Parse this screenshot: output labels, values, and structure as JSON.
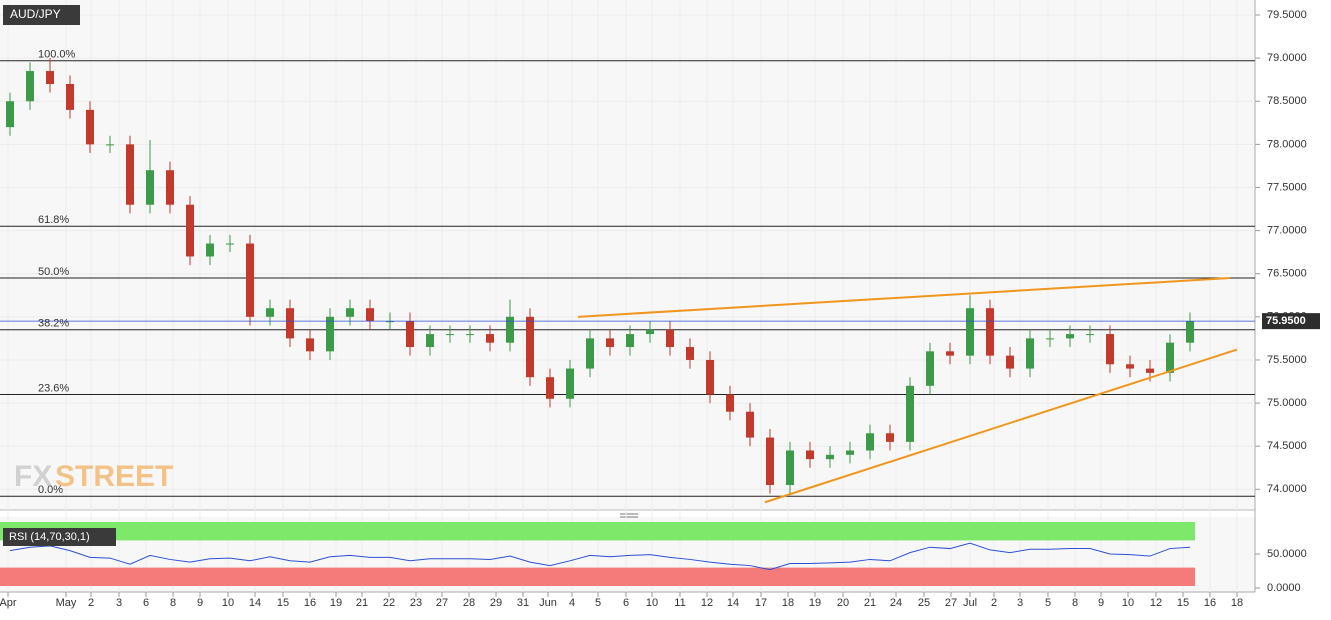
{
  "chart_data": {
    "type": "candlestick",
    "title": "AUD/JPY",
    "grid": true,
    "up_color": "#3c9a48",
    "down_color": "#c23a2c",
    "x": [
      1,
      3,
      5,
      7,
      9,
      11,
      13,
      15,
      17,
      19,
      21,
      23,
      25,
      27,
      29,
      31,
      33,
      35,
      37,
      39,
      41,
      43,
      45,
      47,
      49,
      51,
      53,
      55,
      57,
      59,
      61,
      63,
      65,
      67,
      69,
      71,
      73,
      75,
      77,
      79,
      81,
      83,
      85,
      87,
      89,
      91,
      93,
      95,
      97,
      99,
      101,
      103,
      105,
      107,
      109,
      111,
      113,
      115,
      117,
      119
    ],
    "open": [
      78.2,
      78.5,
      78.85,
      78.7,
      78.4,
      78.0,
      78.0,
      77.3,
      77.7,
      77.3,
      76.7,
      76.85,
      76.85,
      76.0,
      76.1,
      75.75,
      75.6,
      76.0,
      76.1,
      75.95,
      75.95,
      75.65,
      75.8,
      75.8,
      75.8,
      75.7,
      76.0,
      75.3,
      75.05,
      75.4,
      75.75,
      75.65,
      75.8,
      75.85,
      75.65,
      75.5,
      75.1,
      74.9,
      74.6,
      74.05,
      74.45,
      74.35,
      74.4,
      74.45,
      74.65,
      74.55,
      75.2,
      75.6,
      75.55,
      76.1,
      75.55,
      75.4,
      75.75,
      75.75,
      75.8,
      75.8,
      75.45,
      75.4,
      75.35,
      75.7
    ],
    "high": [
      78.6,
      78.95,
      79.0,
      78.8,
      78.5,
      78.1,
      78.1,
      78.05,
      77.8,
      77.4,
      76.95,
      76.95,
      76.95,
      76.2,
      76.2,
      75.85,
      76.1,
      76.2,
      76.2,
      76.05,
      76.05,
      75.9,
      75.9,
      75.9,
      75.9,
      76.2,
      76.1,
      75.4,
      75.5,
      75.85,
      75.85,
      75.9,
      75.95,
      75.95,
      75.75,
      75.6,
      75.2,
      75.0,
      74.7,
      74.55,
      74.55,
      74.5,
      74.55,
      74.75,
      74.75,
      75.3,
      75.7,
      75.7,
      76.25,
      76.2,
      75.65,
      75.85,
      75.85,
      75.9,
      75.9,
      75.9,
      75.55,
      75.5,
      75.8,
      76.05
    ],
    "low": [
      78.1,
      78.4,
      78.6,
      78.3,
      77.9,
      77.9,
      77.2,
      77.2,
      77.2,
      76.6,
      76.6,
      76.75,
      75.9,
      75.9,
      75.65,
      75.5,
      75.5,
      75.9,
      75.85,
      75.85,
      75.55,
      75.55,
      75.7,
      75.7,
      75.6,
      75.6,
      75.2,
      74.95,
      74.95,
      75.3,
      75.55,
      75.55,
      75.7,
      75.55,
      75.4,
      75.0,
      74.8,
      74.5,
      73.95,
      73.95,
      74.25,
      74.25,
      74.3,
      74.35,
      74.45,
      74.45,
      75.1,
      75.45,
      75.45,
      75.45,
      75.3,
      75.3,
      75.65,
      75.65,
      75.7,
      75.35,
      75.3,
      75.25,
      75.25,
      75.6
    ],
    "close": [
      78.5,
      78.85,
      78.7,
      78.4,
      78.0,
      78.0,
      77.3,
      77.7,
      77.3,
      76.7,
      76.85,
      76.85,
      76.0,
      76.1,
      75.75,
      75.6,
      76.0,
      76.1,
      75.95,
      75.95,
      75.65,
      75.8,
      75.8,
      75.8,
      75.7,
      76.0,
      75.3,
      75.05,
      75.4,
      75.75,
      75.65,
      75.8,
      75.85,
      75.65,
      75.5,
      75.1,
      74.9,
      74.6,
      74.05,
      74.45,
      74.35,
      74.4,
      74.45,
      74.65,
      74.55,
      75.2,
      75.6,
      75.55,
      76.1,
      75.55,
      75.4,
      75.75,
      75.75,
      75.8,
      75.8,
      75.45,
      75.4,
      75.35,
      75.7,
      75.95
    ],
    "xlim": [
      0,
      125.5
    ],
    "xticks": [
      {
        "value": 0.8,
        "label": "Apr"
      },
      {
        "value": 6.6,
        "label": "May"
      },
      {
        "value": 9.1,
        "label": "2"
      },
      {
        "value": 11.9,
        "label": "3"
      },
      {
        "value": 14.6,
        "label": "6"
      },
      {
        "value": 17.3,
        "label": "8"
      },
      {
        "value": 20.0,
        "label": "9"
      },
      {
        "value": 22.8,
        "label": "10"
      },
      {
        "value": 25.5,
        "label": "14"
      },
      {
        "value": 28.3,
        "label": "15"
      },
      {
        "value": 31.0,
        "label": "16"
      },
      {
        "value": 33.6,
        "label": "19"
      },
      {
        "value": 36.2,
        "label": "21"
      },
      {
        "value": 38.9,
        "label": "22"
      },
      {
        "value": 41.6,
        "label": "23"
      },
      {
        "value": 44.2,
        "label": "27"
      },
      {
        "value": 46.9,
        "label": "28"
      },
      {
        "value": 49.6,
        "label": "29"
      },
      {
        "value": 52.3,
        "label": "31"
      },
      {
        "value": 54.8,
        "label": "Jun"
      },
      {
        "value": 57.2,
        "label": "4"
      },
      {
        "value": 59.8,
        "label": "5"
      },
      {
        "value": 62.6,
        "label": "6"
      },
      {
        "value": 65.2,
        "label": "10"
      },
      {
        "value": 68.0,
        "label": "11"
      },
      {
        "value": 70.7,
        "label": "12"
      },
      {
        "value": 73.3,
        "label": "14"
      },
      {
        "value": 76.1,
        "label": "17"
      },
      {
        "value": 78.8,
        "label": "18"
      },
      {
        "value": 81.5,
        "label": "19"
      },
      {
        "value": 84.3,
        "label": "20"
      },
      {
        "value": 87.0,
        "label": "21"
      },
      {
        "value": 89.6,
        "label": "24"
      },
      {
        "value": 92.4,
        "label": "25"
      },
      {
        "value": 95.1,
        "label": "27"
      },
      {
        "value": 97.0,
        "label": "Jul"
      },
      {
        "value": 99.4,
        "label": "2"
      },
      {
        "value": 102.0,
        "label": "3"
      },
      {
        "value": 104.8,
        "label": "5"
      },
      {
        "value": 107.5,
        "label": "8"
      },
      {
        "value": 110.1,
        "label": "9"
      },
      {
        "value": 112.8,
        "label": "10"
      },
      {
        "value": 115.6,
        "label": "12"
      },
      {
        "value": 118.3,
        "label": "15"
      },
      {
        "value": 121.0,
        "label": "16"
      },
      {
        "value": 123.7,
        "label": "18"
      }
    ],
    "ylim": [
      73.76,
      79.674
    ],
    "yticks": [
      {
        "value": 74,
        "label": "74.0000"
      },
      {
        "value": 74.5,
        "label": "74.5000"
      },
      {
        "value": 75,
        "label": "75.0000"
      },
      {
        "value": 75.5,
        "label": "75.5000"
      },
      {
        "value": 76,
        "label": "76.0000"
      },
      {
        "value": 76.5,
        "label": "76.5000"
      },
      {
        "value": 77,
        "label": "77.0000"
      },
      {
        "value": 77.5,
        "label": "77.5000"
      },
      {
        "value": 78,
        "label": "78.0000"
      },
      {
        "value": 78.5,
        "label": "78.5000"
      },
      {
        "value": 79,
        "label": "79.0000"
      },
      {
        "value": 79.5,
        "label": "79.5000"
      }
    ],
    "current_price": {
      "value": 75.95,
      "label": "75.9500"
    },
    "fib_levels": [
      {
        "label": "100.0%",
        "value": 78.97
      },
      {
        "label": "61.8%",
        "value": 77.05
      },
      {
        "label": "50.0%",
        "value": 76.45
      },
      {
        "label": "38.2%",
        "value": 75.85
      },
      {
        "label": "23.6%",
        "value": 75.1
      },
      {
        "label": "0.0%",
        "value": 73.92
      }
    ],
    "trendlines": [
      {
        "color": "#f0961e",
        "x": [
          57.8,
          123.0
        ],
        "y": [
          76.0,
          76.45
        ]
      },
      {
        "color": "#f0961e",
        "x": [
          76.5,
          123.7
        ],
        "y": [
          73.85,
          75.62
        ]
      }
    ],
    "watermark": {
      "left": "FX",
      "right": "STREET"
    },
    "rsi": {
      "title": "RSI (14,70,30,1)",
      "color": "#2b4fd6",
      "upper": 70,
      "lower": 30,
      "values": [
        55,
        60,
        62,
        55,
        45,
        44,
        35,
        48,
        42,
        38,
        43,
        44,
        40,
        46,
        40,
        38,
        46,
        48,
        45,
        45,
        40,
        43,
        43,
        43,
        42,
        47,
        38,
        33,
        40,
        48,
        46,
        48,
        49,
        45,
        42,
        38,
        35,
        33,
        27,
        36,
        36,
        37,
        38,
        42,
        40,
        52,
        60,
        58,
        66,
        56,
        52,
        57,
        57,
        58,
        58,
        50,
        49,
        47,
        58,
        60
      ],
      "ylim": [
        0,
        100
      ],
      "yticks": [
        {
          "value": 0,
          "label": "0.0000"
        },
        {
          "value": 50,
          "label": "50.0000"
        }
      ]
    }
  }
}
